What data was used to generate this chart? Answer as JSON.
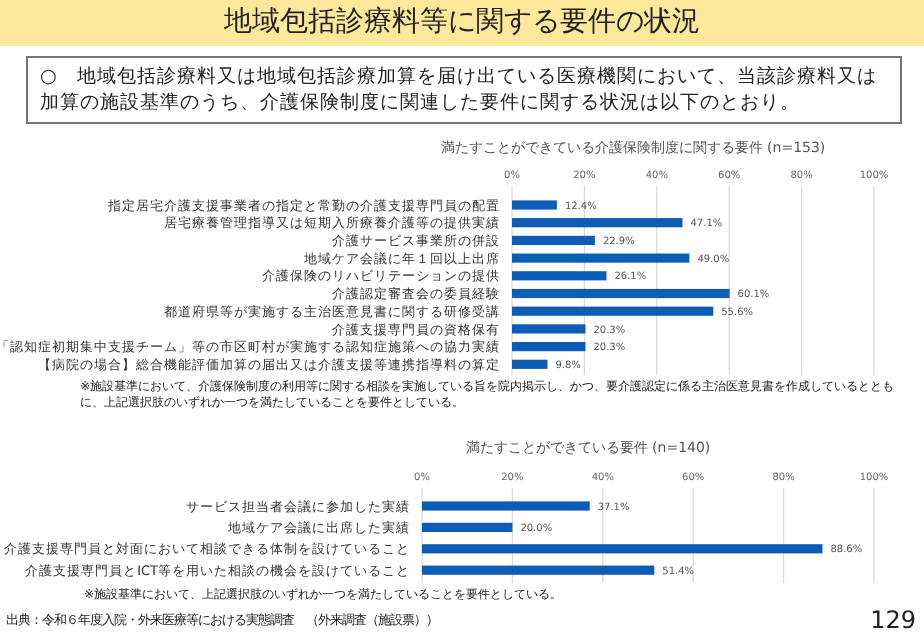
{
  "chart_data": [
    {
      "type": "other",
      "title": "地域包括診療料等に関する要件の状況",
      "subtitle": "○　地域包括診療料又は地域包括診療加算を届け出ている医療機関において、当該診療料又は加算の施設基準のうち、介護保険制度に関連した要件に関する状況は以下のとおり。",
      "annotations": [
        "出典：令和６年度入院・外来医療等における実態調査　（外来調査（施設票））",
        "129"
      ]
    },
    {
      "type": "bar",
      "orientation": "horizontal",
      "title": "満たすことができている介護保険制度に関する要件 (n=153)",
      "categories": [
        "指定居宅介護支援事業者の指定と常勤の介護支援専門員の配置",
        "居宅療養管理指導又は短期入所療養介護等の提供実績",
        "介護サービス事業所の併設",
        "地域ケア会議に年１回以上出席",
        "介護保険のリハビリテーションの提供",
        "介護認定審査会の委員経験",
        "都道府県等が実施する主治医意見書に関する研修受講",
        "介護支援専門員の資格保有",
        "「認知症初期集中支援チーム」等の市区町村が実施する認知症施策への協力実績",
        "【病院の場合】総合機能評価加算の届出又は介護支援等連携指導料の算定"
      ],
      "values": [
        12.4,
        47.1,
        22.9,
        49.0,
        26.1,
        60.1,
        55.6,
        20.3,
        20.3,
        9.8
      ],
      "value_labels": [
        "12.4%",
        "47.1%",
        "22.9%",
        "49.0%",
        "26.1%",
        "60.1%",
        "55.6%",
        "20.3%",
        "20.3%",
        "9.8%"
      ],
      "color": "#0d5cb6",
      "xlim": [
        0,
        100
      ],
      "xticks": [
        {
          "value": 0,
          "label": "0%"
        },
        {
          "value": 20,
          "label": "20%"
        },
        {
          "value": 40,
          "label": "40%"
        },
        {
          "value": 60,
          "label": "60%"
        },
        {
          "value": 80,
          "label": "80%"
        },
        {
          "value": 100,
          "label": "100%"
        }
      ],
      "grid": "x",
      "annotations": [
        "※施設基準において、介護保険制度の利用等に関する相談を実施している旨を院内掲示し、かつ、要介護認定に係る主治医意見書を作成しているとともに、上記選択肢のいずれか一つを満たしていることを要件としている。"
      ]
    },
    {
      "type": "bar",
      "orientation": "horizontal",
      "title": "満たすことができている要件 (n=140)",
      "categories": [
        "サービス担当者会議に参加した実績",
        "地域ケア会議に出席した実績",
        "介護支援専門員と対面において相談できる体制を設けていること",
        "介護支援専門員とICT等を用いた相談の機会を設けていること"
      ],
      "values": [
        37.1,
        20.0,
        88.6,
        51.4
      ],
      "value_labels": [
        "37.1%",
        "20.0%",
        "88.6%",
        "51.4%"
      ],
      "color": "#0d5cb6",
      "xlim": [
        0,
        100
      ],
      "xticks": [
        {
          "value": 0,
          "label": "0%"
        },
        {
          "value": 20,
          "label": "20%"
        },
        {
          "value": 40,
          "label": "40%"
        },
        {
          "value": 60,
          "label": "60%"
        },
        {
          "value": 80,
          "label": "80%"
        },
        {
          "value": 100,
          "label": "100%"
        }
      ],
      "grid": "x",
      "annotations": [
        "※施設基準において、上記選択肢のいずれか一つを満たしていることを要件としている。"
      ]
    }
  ]
}
